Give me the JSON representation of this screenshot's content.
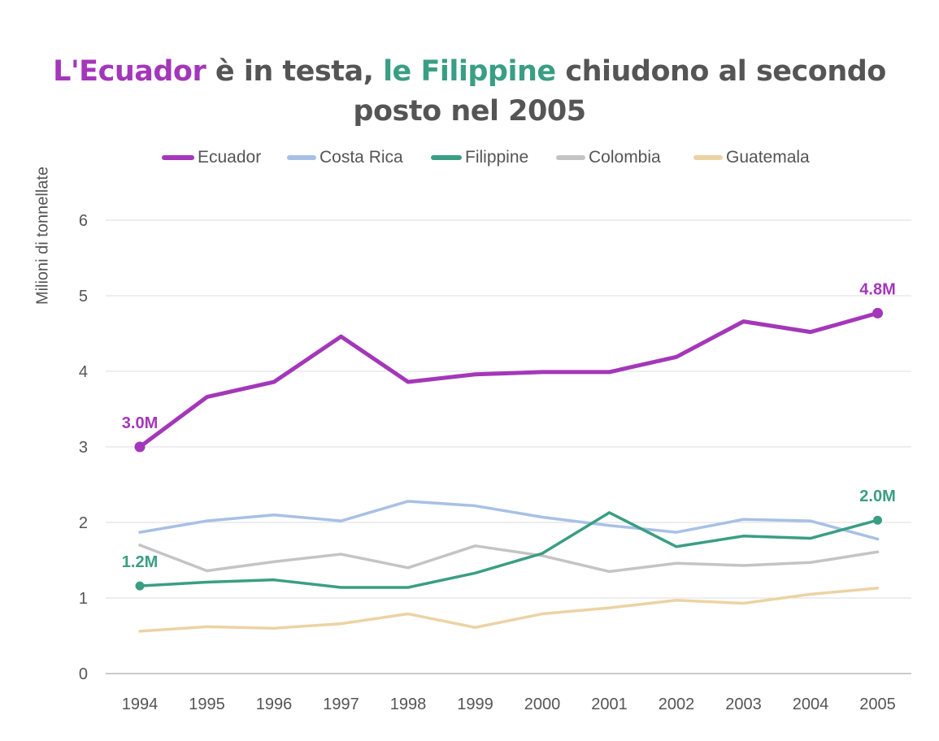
{
  "title": {
    "line1_part1": "L'Ecuador",
    "line1_part2": " è in testa, ",
    "line1_part3": "le Filippine",
    "line1_part4": " chiudono al secondo",
    "line2": "posto nel 2005"
  },
  "colors": {
    "Ecuador": "#a437b9",
    "Costa Rica": "#a8c0e6",
    "Filippine": "#3a9e84",
    "Colombia": "#c4c4c4",
    "Guatemala": "#ecd3a4"
  },
  "chart_data": {
    "type": "line",
    "title": "L'Ecuador è in testa, le Filippine chiudono al secondo posto nel 2005",
    "xlabel": "",
    "ylabel": "Milioni di tonnellate",
    "ylim": [
      0,
      6
    ],
    "yticks": [
      "0",
      "1",
      "2",
      "3",
      "4",
      "5",
      "6"
    ],
    "x": [
      "1994",
      "1995",
      "1996",
      "1997",
      "1998",
      "1999",
      "2000",
      "2001",
      "2002",
      "2003",
      "2004",
      "2005"
    ],
    "grid": "horizontal",
    "legend_position": "top",
    "series": [
      {
        "name": "Ecuador",
        "values": [
          3.0,
          3.66,
          3.86,
          4.46,
          3.86,
          3.96,
          3.99,
          3.99,
          4.19,
          4.66,
          4.52,
          4.77
        ]
      },
      {
        "name": "Costa Rica",
        "values": [
          1.87,
          2.02,
          2.1,
          2.02,
          2.28,
          2.22,
          2.07,
          1.96,
          1.87,
          2.04,
          2.02,
          1.78
        ]
      },
      {
        "name": "Filippine",
        "values": [
          1.16,
          1.21,
          1.24,
          1.14,
          1.14,
          1.33,
          1.59,
          2.13,
          1.68,
          1.82,
          1.79,
          2.03
        ]
      },
      {
        "name": "Colombia",
        "values": [
          1.7,
          1.36,
          1.48,
          1.58,
          1.4,
          1.69,
          1.56,
          1.35,
          1.46,
          1.43,
          1.47,
          1.61
        ]
      },
      {
        "name": "Guatemala",
        "values": [
          0.56,
          0.62,
          0.6,
          0.66,
          0.79,
          0.61,
          0.79,
          0.87,
          0.97,
          0.93,
          1.05,
          1.13
        ]
      }
    ],
    "annotations": [
      {
        "series": "Ecuador",
        "x": "1994",
        "y": 3.0,
        "text": "3.0M"
      },
      {
        "series": "Ecuador",
        "x": "2005",
        "y": 4.77,
        "text": "4.8M"
      },
      {
        "series": "Filippine",
        "x": "1994",
        "y": 1.16,
        "text": "1.2M"
      },
      {
        "series": "Filippine",
        "x": "2005",
        "y": 2.03,
        "text": "2.0M"
      }
    ]
  }
}
